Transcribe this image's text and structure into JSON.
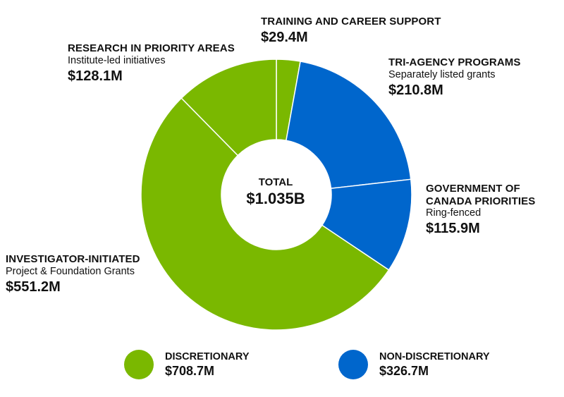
{
  "colors": {
    "discretionary": "#7ab800",
    "non_discretionary": "#0066cc",
    "divider": "#ffffff"
  },
  "chart_data": {
    "type": "pie",
    "variant": "donut",
    "center": {
      "label": "TOTAL",
      "value": "$1.035B"
    },
    "slices": [
      {
        "name": "TRAINING AND CAREER SUPPORT",
        "subtitle": "",
        "value": 29.4,
        "display": "$29.4M",
        "group": "discretionary"
      },
      {
        "name": "TRI-AGENCY PROGRAMS",
        "subtitle": "Separately listed grants",
        "value": 210.8,
        "display": "$210.8M",
        "group": "non_discretionary"
      },
      {
        "name": "GOVERNMENT OF CANADA PRIORITIES",
        "name_lines": [
          "GOVERNMENT OF",
          "CANADA PRIORITIES"
        ],
        "subtitle": "Ring-fenced",
        "value": 115.9,
        "display": "$115.9M",
        "group": "non_discretionary"
      },
      {
        "name": "INVESTIGATOR-INITIATED",
        "subtitle": "Project & Foundation Grants",
        "value": 551.2,
        "display": "$551.2M",
        "group": "discretionary"
      },
      {
        "name": "RESEARCH IN PRIORITY AREAS",
        "subtitle": "Institute-led initiatives",
        "value": 128.1,
        "display": "$128.1M",
        "group": "discretionary"
      }
    ],
    "legend": [
      {
        "name": "DISCRETIONARY",
        "value": "$708.7M",
        "group": "discretionary"
      },
      {
        "name": "NON-DISCRETIONARY",
        "value": "$326.7M",
        "group": "non_discretionary"
      }
    ]
  }
}
